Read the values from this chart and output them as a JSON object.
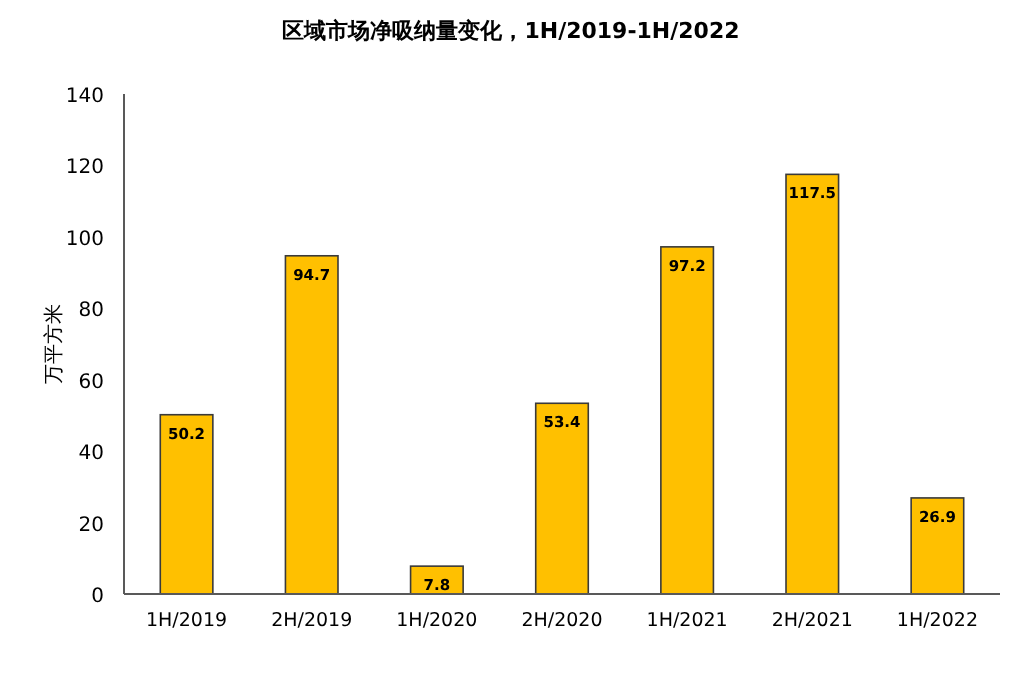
{
  "chart_data": {
    "type": "bar",
    "title": "区域市场净吸纳量变化，1H/2019-1H/2022",
    "ylabel": "万平方米",
    "categories": [
      "1H/2019",
      "2H/2019",
      "1H/2020",
      "2H/2020",
      "1H/2021",
      "2H/2021",
      "1H/2022"
    ],
    "values": [
      50.2,
      94.7,
      7.8,
      53.4,
      97.2,
      117.5,
      26.9
    ],
    "color": "#ffc000",
    "ylim": [
      0,
      140
    ],
    "yticks": [
      0,
      20,
      40,
      60,
      80,
      100,
      120,
      140
    ],
    "data_labels": true
  }
}
